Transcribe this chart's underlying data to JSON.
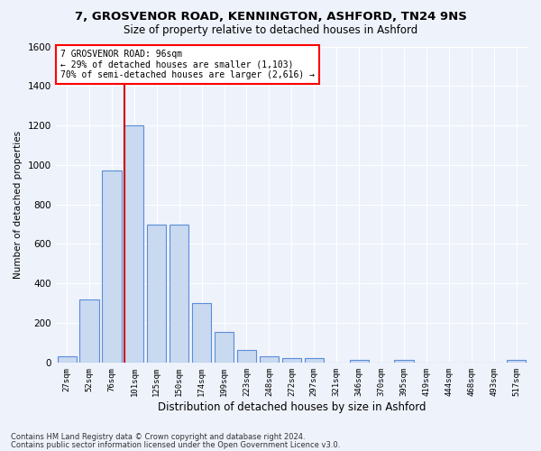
{
  "title_line1": "7, GROSVENOR ROAD, KENNINGTON, ASHFORD, TN24 9NS",
  "title_line2": "Size of property relative to detached houses in Ashford",
  "xlabel": "Distribution of detached houses by size in Ashford",
  "ylabel": "Number of detached properties",
  "footnote1": "Contains HM Land Registry data © Crown copyright and database right 2024.",
  "footnote2": "Contains public sector information licensed under the Open Government Licence v3.0.",
  "annotation_line1": "7 GROSVENOR ROAD: 96sqm",
  "annotation_line2": "← 29% of detached houses are smaller (1,103)",
  "annotation_line3": "70% of semi-detached houses are larger (2,616) →",
  "categories": [
    "27sqm",
    "52sqm",
    "76sqm",
    "101sqm",
    "125sqm",
    "150sqm",
    "174sqm",
    "199sqm",
    "223sqm",
    "248sqm",
    "272sqm",
    "297sqm",
    "321sqm",
    "346sqm",
    "370sqm",
    "395sqm",
    "419sqm",
    "444sqm",
    "468sqm",
    "493sqm",
    "517sqm"
  ],
  "values": [
    30,
    320,
    970,
    1200,
    700,
    700,
    300,
    155,
    65,
    30,
    20,
    20,
    0,
    15,
    0,
    15,
    0,
    0,
    0,
    0,
    15
  ],
  "bar_color": "#c9d9f0",
  "bar_edge_color": "#5b8dd9",
  "redline_color": "#cc0000",
  "background_color": "#eef2fb",
  "grid_color": "#ffffff",
  "ylim": [
    0,
    1600
  ],
  "yticks": [
    0,
    200,
    400,
    600,
    800,
    1000,
    1200,
    1400,
    1600
  ]
}
